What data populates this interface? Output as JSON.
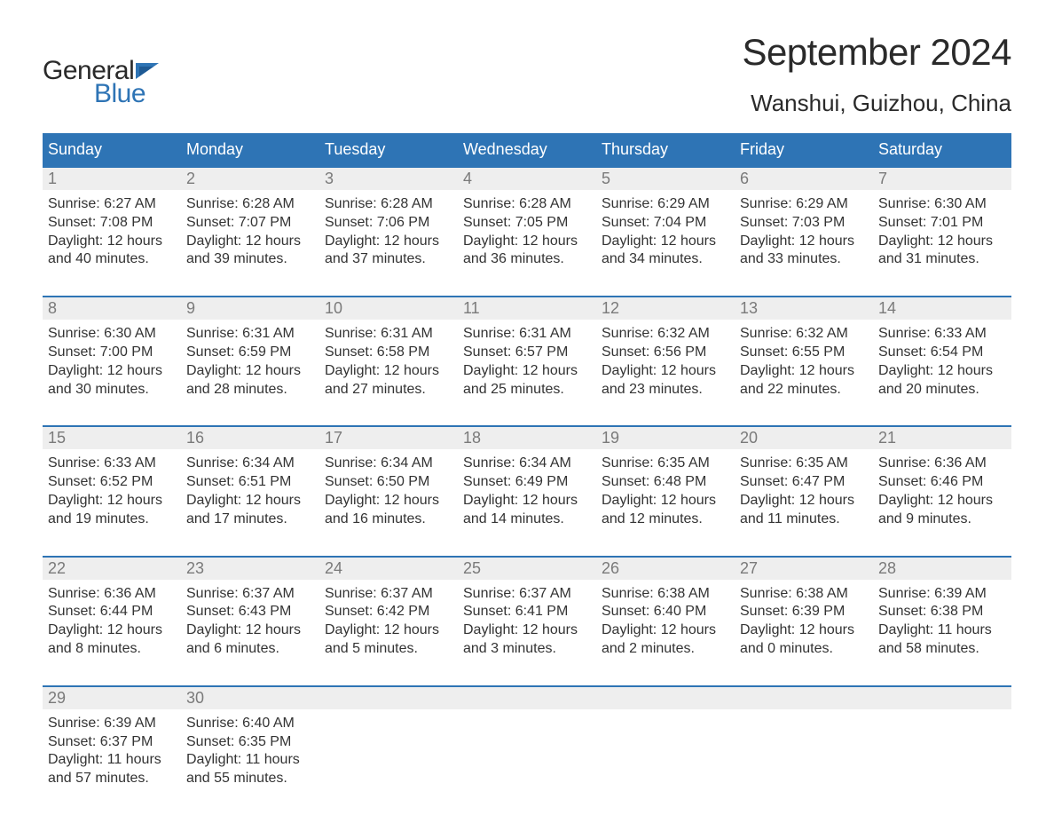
{
  "logo": {
    "text1": "General",
    "text2": "Blue"
  },
  "title": "September 2024",
  "subtitle": "Wanshui, Guizhou, China",
  "colors": {
    "header_bg": "#2e74b5",
    "header_fg": "#ffffff",
    "daynum_bg": "#eeeeee",
    "daynum_fg": "#7a7a7a",
    "row_border": "#2e74b5",
    "body_fg": "#333333",
    "page_bg": "#ffffff",
    "logo_blue": "#2e74b5"
  },
  "layout": {
    "columns": 7,
    "weekday_fontsize": 18,
    "daynum_fontsize": 18,
    "body_fontsize": 16,
    "title_fontsize": 42,
    "subtitle_fontsize": 26
  },
  "weekdays": [
    "Sunday",
    "Monday",
    "Tuesday",
    "Wednesday",
    "Thursday",
    "Friday",
    "Saturday"
  ],
  "weeks": [
    [
      {
        "n": "1",
        "sunrise": "6:27 AM",
        "sunset": "7:08 PM",
        "daylight": "12 hours and 40 minutes."
      },
      {
        "n": "2",
        "sunrise": "6:28 AM",
        "sunset": "7:07 PM",
        "daylight": "12 hours and 39 minutes."
      },
      {
        "n": "3",
        "sunrise": "6:28 AM",
        "sunset": "7:06 PM",
        "daylight": "12 hours and 37 minutes."
      },
      {
        "n": "4",
        "sunrise": "6:28 AM",
        "sunset": "7:05 PM",
        "daylight": "12 hours and 36 minutes."
      },
      {
        "n": "5",
        "sunrise": "6:29 AM",
        "sunset": "7:04 PM",
        "daylight": "12 hours and 34 minutes."
      },
      {
        "n": "6",
        "sunrise": "6:29 AM",
        "sunset": "7:03 PM",
        "daylight": "12 hours and 33 minutes."
      },
      {
        "n": "7",
        "sunrise": "6:30 AM",
        "sunset": "7:01 PM",
        "daylight": "12 hours and 31 minutes."
      }
    ],
    [
      {
        "n": "8",
        "sunrise": "6:30 AM",
        "sunset": "7:00 PM",
        "daylight": "12 hours and 30 minutes."
      },
      {
        "n": "9",
        "sunrise": "6:31 AM",
        "sunset": "6:59 PM",
        "daylight": "12 hours and 28 minutes."
      },
      {
        "n": "10",
        "sunrise": "6:31 AM",
        "sunset": "6:58 PM",
        "daylight": "12 hours and 27 minutes."
      },
      {
        "n": "11",
        "sunrise": "6:31 AM",
        "sunset": "6:57 PM",
        "daylight": "12 hours and 25 minutes."
      },
      {
        "n": "12",
        "sunrise": "6:32 AM",
        "sunset": "6:56 PM",
        "daylight": "12 hours and 23 minutes."
      },
      {
        "n": "13",
        "sunrise": "6:32 AM",
        "sunset": "6:55 PM",
        "daylight": "12 hours and 22 minutes."
      },
      {
        "n": "14",
        "sunrise": "6:33 AM",
        "sunset": "6:54 PM",
        "daylight": "12 hours and 20 minutes."
      }
    ],
    [
      {
        "n": "15",
        "sunrise": "6:33 AM",
        "sunset": "6:52 PM",
        "daylight": "12 hours and 19 minutes."
      },
      {
        "n": "16",
        "sunrise": "6:34 AM",
        "sunset": "6:51 PM",
        "daylight": "12 hours and 17 minutes."
      },
      {
        "n": "17",
        "sunrise": "6:34 AM",
        "sunset": "6:50 PM",
        "daylight": "12 hours and 16 minutes."
      },
      {
        "n": "18",
        "sunrise": "6:34 AM",
        "sunset": "6:49 PM",
        "daylight": "12 hours and 14 minutes."
      },
      {
        "n": "19",
        "sunrise": "6:35 AM",
        "sunset": "6:48 PM",
        "daylight": "12 hours and 12 minutes."
      },
      {
        "n": "20",
        "sunrise": "6:35 AM",
        "sunset": "6:47 PM",
        "daylight": "12 hours and 11 minutes."
      },
      {
        "n": "21",
        "sunrise": "6:36 AM",
        "sunset": "6:46 PM",
        "daylight": "12 hours and 9 minutes."
      }
    ],
    [
      {
        "n": "22",
        "sunrise": "6:36 AM",
        "sunset": "6:44 PM",
        "daylight": "12 hours and 8 minutes."
      },
      {
        "n": "23",
        "sunrise": "6:37 AM",
        "sunset": "6:43 PM",
        "daylight": "12 hours and 6 minutes."
      },
      {
        "n": "24",
        "sunrise": "6:37 AM",
        "sunset": "6:42 PM",
        "daylight": "12 hours and 5 minutes."
      },
      {
        "n": "25",
        "sunrise": "6:37 AM",
        "sunset": "6:41 PM",
        "daylight": "12 hours and 3 minutes."
      },
      {
        "n": "26",
        "sunrise": "6:38 AM",
        "sunset": "6:40 PM",
        "daylight": "12 hours and 2 minutes."
      },
      {
        "n": "27",
        "sunrise": "6:38 AM",
        "sunset": "6:39 PM",
        "daylight": "12 hours and 0 minutes."
      },
      {
        "n": "28",
        "sunrise": "6:39 AM",
        "sunset": "6:38 PM",
        "daylight": "11 hours and 58 minutes."
      }
    ],
    [
      {
        "n": "29",
        "sunrise": "6:39 AM",
        "sunset": "6:37 PM",
        "daylight": "11 hours and 57 minutes."
      },
      {
        "n": "30",
        "sunrise": "6:40 AM",
        "sunset": "6:35 PM",
        "daylight": "11 hours and 55 minutes."
      },
      {
        "empty": true
      },
      {
        "empty": true
      },
      {
        "empty": true
      },
      {
        "empty": true
      },
      {
        "empty": true
      }
    ]
  ],
  "labels": {
    "sunrise": "Sunrise:",
    "sunset": "Sunset:",
    "daylight": "Daylight:"
  }
}
